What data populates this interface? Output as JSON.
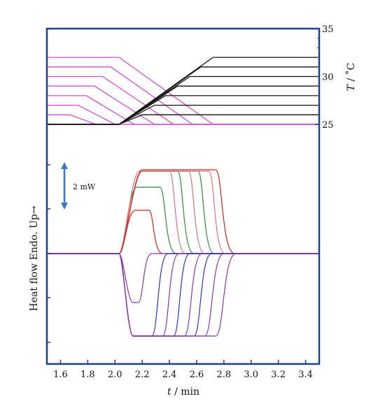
{
  "chart_data": {
    "type": "line",
    "xlabel_italic": "t",
    "xlabel_rest": " / min",
    "ylabel_left": "Heat flow Endo. Up→",
    "ylabel_right_italic": "T",
    "ylabel_right_rest": " / ˚C",
    "annotation": "2 mW",
    "xlim": [
      1.5,
      3.5
    ],
    "x_ticks": [
      "1.6",
      "1.8",
      "2.0",
      "2.2",
      "2.4",
      "2.6",
      "2.8",
      "3.0",
      "3.2",
      "3.4"
    ],
    "temp_ylim": [
      25,
      35
    ],
    "temp_ticks": [
      "25",
      "30",
      "35"
    ],
    "colors": {
      "frame": "#1f3f8f",
      "heating": "#111111",
      "cooling": "#d04fd0",
      "endo_red": "#d42020",
      "endo_green": "#2f8a3a",
      "endo_pink": "#e0707a",
      "exo_blue": "#2b35c8",
      "exo_purple": "#8a3aa0",
      "arrow": "#3a78c8"
    },
    "heating_curves": [
      {
        "start_x": 2.03,
        "end_x": 2.72,
        "level": 32
      },
      {
        "start_x": 2.03,
        "end_x": 2.63,
        "level": 31
      },
      {
        "start_x": 2.03,
        "end_x": 2.55,
        "level": 30
      },
      {
        "start_x": 2.03,
        "end_x": 2.46,
        "level": 29
      },
      {
        "start_x": 2.03,
        "end_x": 2.37,
        "level": 28
      },
      {
        "start_x": 2.03,
        "end_x": 2.29,
        "level": 27
      },
      {
        "start_x": 2.03,
        "end_x": 2.2,
        "level": 26
      }
    ],
    "cooling_curves": [
      {
        "start_x": 2.03,
        "end_x": 2.72,
        "level": 32
      },
      {
        "start_x": 1.97,
        "end_x": 2.57,
        "level": 31
      },
      {
        "start_x": 1.91,
        "end_x": 2.43,
        "level": 30
      },
      {
        "start_x": 1.85,
        "end_x": 2.29,
        "level": 29
      },
      {
        "start_x": 1.79,
        "end_x": 2.14,
        "level": 28
      },
      {
        "start_x": 1.73,
        "end_x": 2.0,
        "level": 27
      },
      {
        "start_x": 1.67,
        "end_x": 1.86,
        "level": 26
      }
    ],
    "endo_curves": [
      {
        "rise_x": 2.03,
        "peak_x": 2.15,
        "height": 62,
        "end_x": 2.25,
        "decay": 0.1,
        "color": "endo_red"
      },
      {
        "rise_x": 2.03,
        "peak_x": 2.16,
        "height": 95,
        "end_x": 2.33,
        "decay": 0.12,
        "color": "endo_green"
      },
      {
        "rise_x": 2.03,
        "peak_x": 2.18,
        "height": 118,
        "end_x": 2.4,
        "decay": 0.12,
        "color": "endo_pink"
      },
      {
        "rise_x": 2.03,
        "peak_x": 2.2,
        "height": 118,
        "end_x": 2.46,
        "decay": 0.12,
        "color": "endo_green"
      },
      {
        "rise_x": 2.03,
        "peak_x": 2.2,
        "height": 118,
        "end_x": 2.54,
        "decay": 0.12,
        "color": "endo_pink"
      },
      {
        "rise_x": 2.03,
        "peak_x": 2.2,
        "height": 118,
        "end_x": 2.61,
        "decay": 0.12,
        "color": "endo_green"
      },
      {
        "rise_x": 2.03,
        "peak_x": 2.2,
        "height": 118,
        "end_x": 2.69,
        "decay": 0.12,
        "color": "endo_pink"
      },
      {
        "rise_x": 2.03,
        "peak_x": 2.2,
        "height": 120,
        "end_x": 2.74,
        "decay": 0.14,
        "color": "endo_red"
      }
    ],
    "exo_curves": [
      {
        "drop_x": 2.03,
        "depth": 70,
        "end_x": 2.17,
        "recover": 0.1,
        "color": "exo_purple"
      },
      {
        "drop_x": 2.03,
        "depth": 118,
        "end_x": 2.27,
        "recover": 0.12,
        "color": "exo_blue"
      },
      {
        "drop_x": 2.03,
        "depth": 118,
        "end_x": 2.35,
        "recover": 0.12,
        "color": "exo_purple"
      },
      {
        "drop_x": 2.03,
        "depth": 118,
        "end_x": 2.43,
        "recover": 0.12,
        "color": "exo_blue"
      },
      {
        "drop_x": 2.03,
        "depth": 118,
        "end_x": 2.51,
        "recover": 0.13,
        "color": "exo_purple"
      },
      {
        "drop_x": 2.03,
        "depth": 118,
        "end_x": 2.58,
        "recover": 0.13,
        "color": "exo_blue"
      },
      {
        "drop_x": 2.03,
        "depth": 118,
        "end_x": 2.66,
        "recover": 0.14,
        "color": "exo_purple"
      },
      {
        "drop_x": 2.03,
        "depth": 118,
        "end_x": 2.74,
        "recover": 0.15,
        "color": "exo_purple"
      }
    ]
  }
}
